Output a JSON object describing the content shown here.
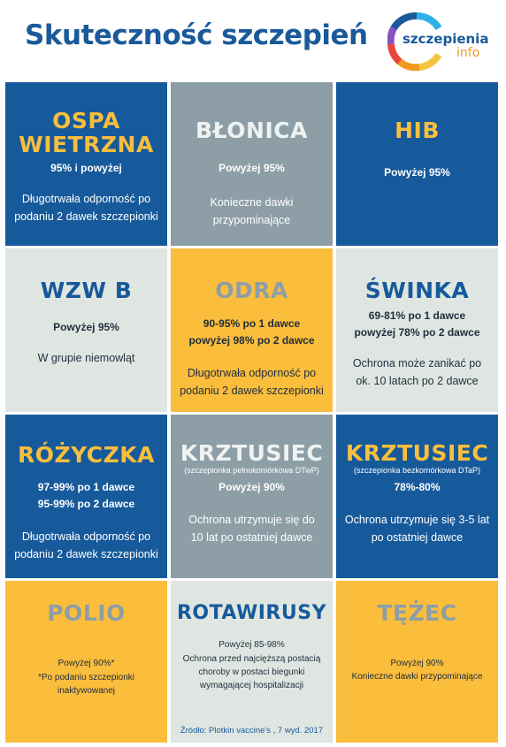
{
  "header": {
    "title": "Skuteczność szczepień",
    "logo_line1": "szczepienia",
    "logo_line2": "info",
    "logo_colors": [
      "#1a5a9a",
      "#3d86d6",
      "#2fb0e8",
      "#f29a1f",
      "#e8473c",
      "#8a4fc0"
    ]
  },
  "tiles": {
    "ospa": {
      "name_line1": "OSPA",
      "name_line2": "WIETRZNA",
      "effectiveness": "95% i powyżej",
      "note_line1": "Długotrwała odporność po",
      "note_line2": "podaniu 2 dawek szczepionki"
    },
    "blonica": {
      "name": "BŁONICA",
      "effectiveness": "Powyżej 95%",
      "note_line1": "Konieczne dawki",
      "note_line2": "przypominające"
    },
    "hib": {
      "name": "HIB",
      "effectiveness": "Powyżej 95%"
    },
    "wzwb": {
      "name": "WZW B",
      "effectiveness": "Powyżej 95%",
      "note": "W grupie niemowląt"
    },
    "odra": {
      "name": "ODRA",
      "eff_line1": "90-95% po 1 dawce",
      "eff_line2": "powyżej 98% po 2 dawce",
      "note_line1": "Długotrwała odporność po",
      "note_line2": "podaniu 2 dawek szczepionki"
    },
    "swinka": {
      "name": "ŚWINKA",
      "eff_line1": "69-81% po 1 dawce",
      "eff_line2": "powyżej 78% po 2 dawce",
      "note_line1": "Ochrona może zanikać po",
      "note_line2": "ok. 10 latach po 2 dawce"
    },
    "rozyczka": {
      "name": "RÓŻYCZKA",
      "eff_line1": "97-99% po 1 dawce",
      "eff_line2": "95-99% po 2 dawce",
      "note_line1": "Długotrwała odporność po",
      "note_line2": "podaniu 2 dawek szczepionki"
    },
    "krztusiec_dtwp": {
      "name": "KRZTUSIEC",
      "subtitle": "(szczepionka pełnokomórkowa DTwP)",
      "effectiveness": "Powyżej 90%",
      "note_line1": "Ochrona utrzymuje się do",
      "note_line2": "10 lat po ostatniej dawce"
    },
    "krztusiec_dtap": {
      "name": "KRZTUSIEC",
      "subtitle": "(szczepionka bezkomórkowa DTaP)",
      "effectiveness": "78%-80%",
      "note_line1": "Ochrona utrzymuje się 3-5 lat",
      "note_line2": "po ostatniej dawce"
    },
    "polio": {
      "name": "POLIO",
      "effectiveness": "Powyżej 90%*",
      "note_line1": "*Po podaniu szczepionki",
      "note_line2": "inaktywowanej"
    },
    "rotawirusy": {
      "name": "ROTAWIRUSY",
      "effectiveness": "Powyżej 85-98%",
      "note_line1": "Ochrona przed najcięższą postacią",
      "note_line2": "choroby w postaci biegunki",
      "note_line3": "wymagającej hospitalizacji",
      "source": "Źródło: Plotkin vaccine's , 7 wyd. 2017"
    },
    "tezec": {
      "name": "TĘŻEC",
      "effectiveness": "Powyżej 90%",
      "note": "Konieczne dawki przypominające"
    }
  },
  "colors": {
    "blue": "#175a9b",
    "gray": "#8d9ea6",
    "yellow": "#fbbd3c",
    "light": "#dfe6e1",
    "accent_yellow": "#f8be3d"
  }
}
